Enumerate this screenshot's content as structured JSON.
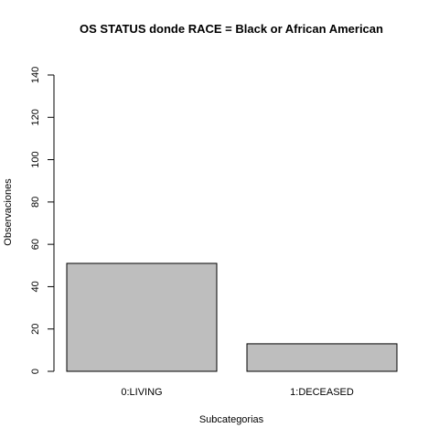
{
  "chart_data": {
    "type": "bar",
    "title": "OS STATUS donde RACE = Black or African American",
    "xlabel": "Subcategorias",
    "ylabel": "Observaciones",
    "categories": [
      "0:LIVING",
      "1:DECEASED"
    ],
    "values": [
      51,
      13
    ],
    "ylim": [
      0,
      140
    ],
    "yticks": [
      0,
      20,
      40,
      60,
      80,
      100,
      120,
      140
    ],
    "grid": false,
    "bar_color": "#bebebe",
    "bar_border_color": "#000000"
  }
}
